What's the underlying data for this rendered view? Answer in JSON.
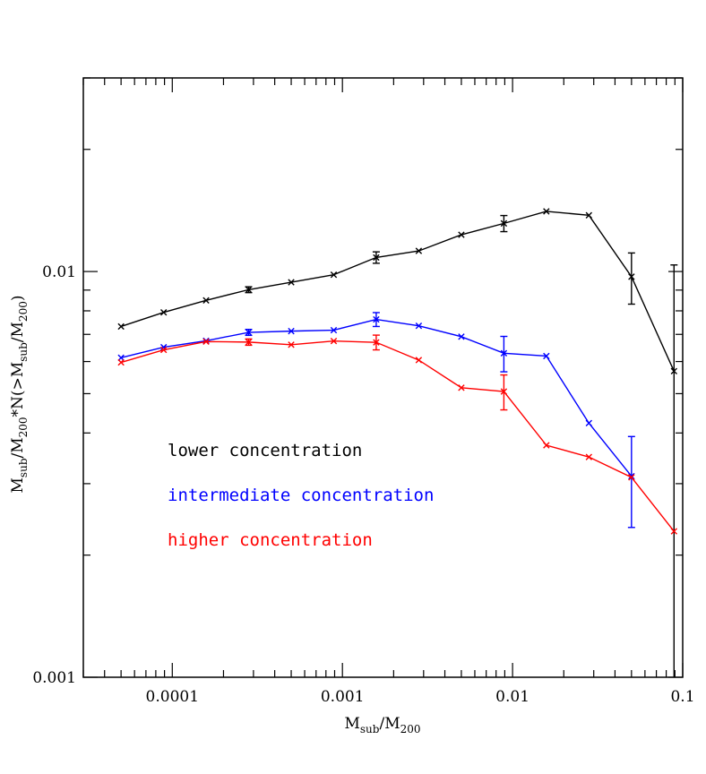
{
  "chart_data": {
    "type": "line",
    "title": "",
    "xscale": "log",
    "yscale": "log",
    "xlim": [
      3e-05,
      0.1
    ],
    "ylim": [
      0.001,
      0.03
    ],
    "grid": false,
    "legend_placement": "middle-left",
    "xlabel": {
      "base": "M",
      "sub1": "sub",
      "mid": "/M",
      "sub2": "200"
    },
    "ylabel": {
      "p1": "M",
      "s1": "sub",
      "p2": "/M",
      "s2": "200",
      "p3": "*N(>M",
      "s3": "sub",
      "p4": "/M",
      "s4": "200",
      "p5": ")"
    },
    "x_ticks": [
      {
        "value": 0.0001,
        "label": "0.0001"
      },
      {
        "value": 0.001,
        "label": "0.001"
      },
      {
        "value": 0.01,
        "label": "0.01"
      },
      {
        "value": 0.1,
        "label": "0.1"
      }
    ],
    "y_ticks": [
      {
        "value": 0.001,
        "label": "0.001"
      },
      {
        "value": 0.01,
        "label": "0.01"
      }
    ],
    "series": [
      {
        "name": "lower concentration",
        "color": "#000000",
        "points": [
          {
            "x": 5e-05,
            "y": 0.00732
          },
          {
            "x": 8.9e-05,
            "y": 0.00793
          },
          {
            "x": 0.000158,
            "y": 0.00849
          },
          {
            "x": 0.000281,
            "y": 0.00902,
            "err": 0.00015
          },
          {
            "x": 0.0005,
            "y": 0.00941
          },
          {
            "x": 0.000889,
            "y": 0.00982
          },
          {
            "x": 0.00158,
            "y": 0.01083,
            "err": 0.00035
          },
          {
            "x": 0.00281,
            "y": 0.01124
          },
          {
            "x": 0.005,
            "y": 0.01232
          },
          {
            "x": 0.00889,
            "y": 0.01314,
            "err": 0.0006
          },
          {
            "x": 0.0158,
            "y": 0.01407
          },
          {
            "x": 0.0281,
            "y": 0.01376
          },
          {
            "x": 0.05,
            "y": 0.00971,
            "err": 0.0014
          },
          {
            "x": 0.0889,
            "y": 0.00568,
            "err": 0.0047
          }
        ]
      },
      {
        "name": "intermediate concentration",
        "color": "#0000ff",
        "points": [
          {
            "x": 5e-05,
            "y": 0.00613
          },
          {
            "x": 8.9e-05,
            "y": 0.00651
          },
          {
            "x": 0.000158,
            "y": 0.00675
          },
          {
            "x": 0.000281,
            "y": 0.00708,
            "err": 0.00012
          },
          {
            "x": 0.0005,
            "y": 0.00713
          },
          {
            "x": 0.000889,
            "y": 0.00717
          },
          {
            "x": 0.00158,
            "y": 0.00762,
            "err": 0.0003
          },
          {
            "x": 0.00281,
            "y": 0.00735
          },
          {
            "x": 0.005,
            "y": 0.00691
          },
          {
            "x": 0.00889,
            "y": 0.00629,
            "err": 0.00063
          },
          {
            "x": 0.0158,
            "y": 0.00619
          },
          {
            "x": 0.0281,
            "y": 0.00423
          },
          {
            "x": 0.05,
            "y": 0.00313,
            "err": 0.00079
          }
        ]
      },
      {
        "name": "higher concentration",
        "color": "#ff0000",
        "points": [
          {
            "x": 5e-05,
            "y": 0.00597
          },
          {
            "x": 8.9e-05,
            "y": 0.00641
          },
          {
            "x": 0.000158,
            "y": 0.00672
          },
          {
            "x": 0.000281,
            "y": 0.0067,
            "err": 0.00012
          },
          {
            "x": 0.0005,
            "y": 0.0066
          },
          {
            "x": 0.000889,
            "y": 0.00674
          },
          {
            "x": 0.00158,
            "y": 0.00669,
            "err": 0.00028
          },
          {
            "x": 0.00281,
            "y": 0.00605
          },
          {
            "x": 0.005,
            "y": 0.00517
          },
          {
            "x": 0.00889,
            "y": 0.00506,
            "err": 0.0005
          },
          {
            "x": 0.0158,
            "y": 0.00373
          },
          {
            "x": 0.0281,
            "y": 0.00349
          },
          {
            "x": 0.05,
            "y": 0.00311
          },
          {
            "x": 0.0889,
            "y": 0.00229
          }
        ]
      }
    ]
  }
}
